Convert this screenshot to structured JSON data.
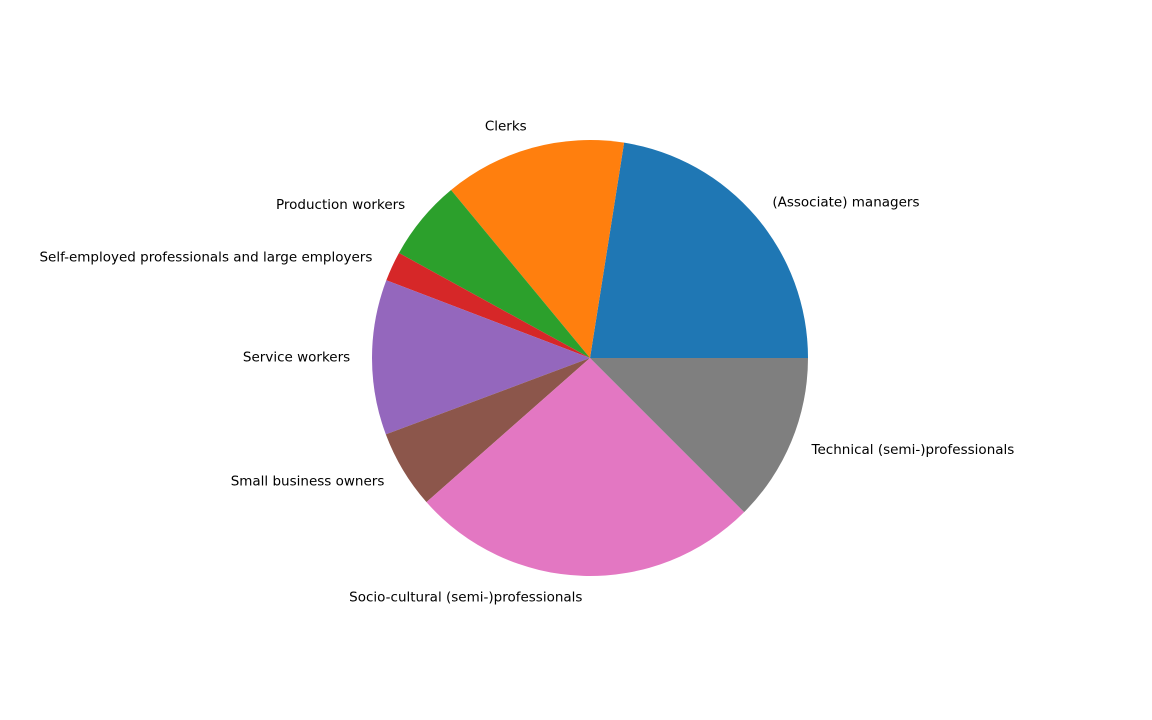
{
  "chart_data": {
    "type": "pie",
    "title": "",
    "start_angle_deg": 0,
    "direction": "counterclockwise",
    "slices": [
      {
        "label": "(Associate) managers",
        "value": 22.5,
        "color": "#1f77b4"
      },
      {
        "label": "Clerks",
        "value": 13.5,
        "color": "#ff7f0e"
      },
      {
        "label": "Production workers",
        "value": 6.0,
        "color": "#2ca02c"
      },
      {
        "label": "Self-employed professionals and large employers",
        "value": 2.2,
        "color": "#d62728"
      },
      {
        "label": "Service workers",
        "value": 11.5,
        "color": "#9467bd"
      },
      {
        "label": "Small business owners",
        "value": 5.8,
        "color": "#8c564b"
      },
      {
        "label": "Socio-cultural (semi-)professionals",
        "value": 26.0,
        "color": "#e377c2"
      },
      {
        "label": "Technical (semi-)professionals",
        "value": 12.5,
        "color": "#7f7f7f"
      }
    ]
  }
}
